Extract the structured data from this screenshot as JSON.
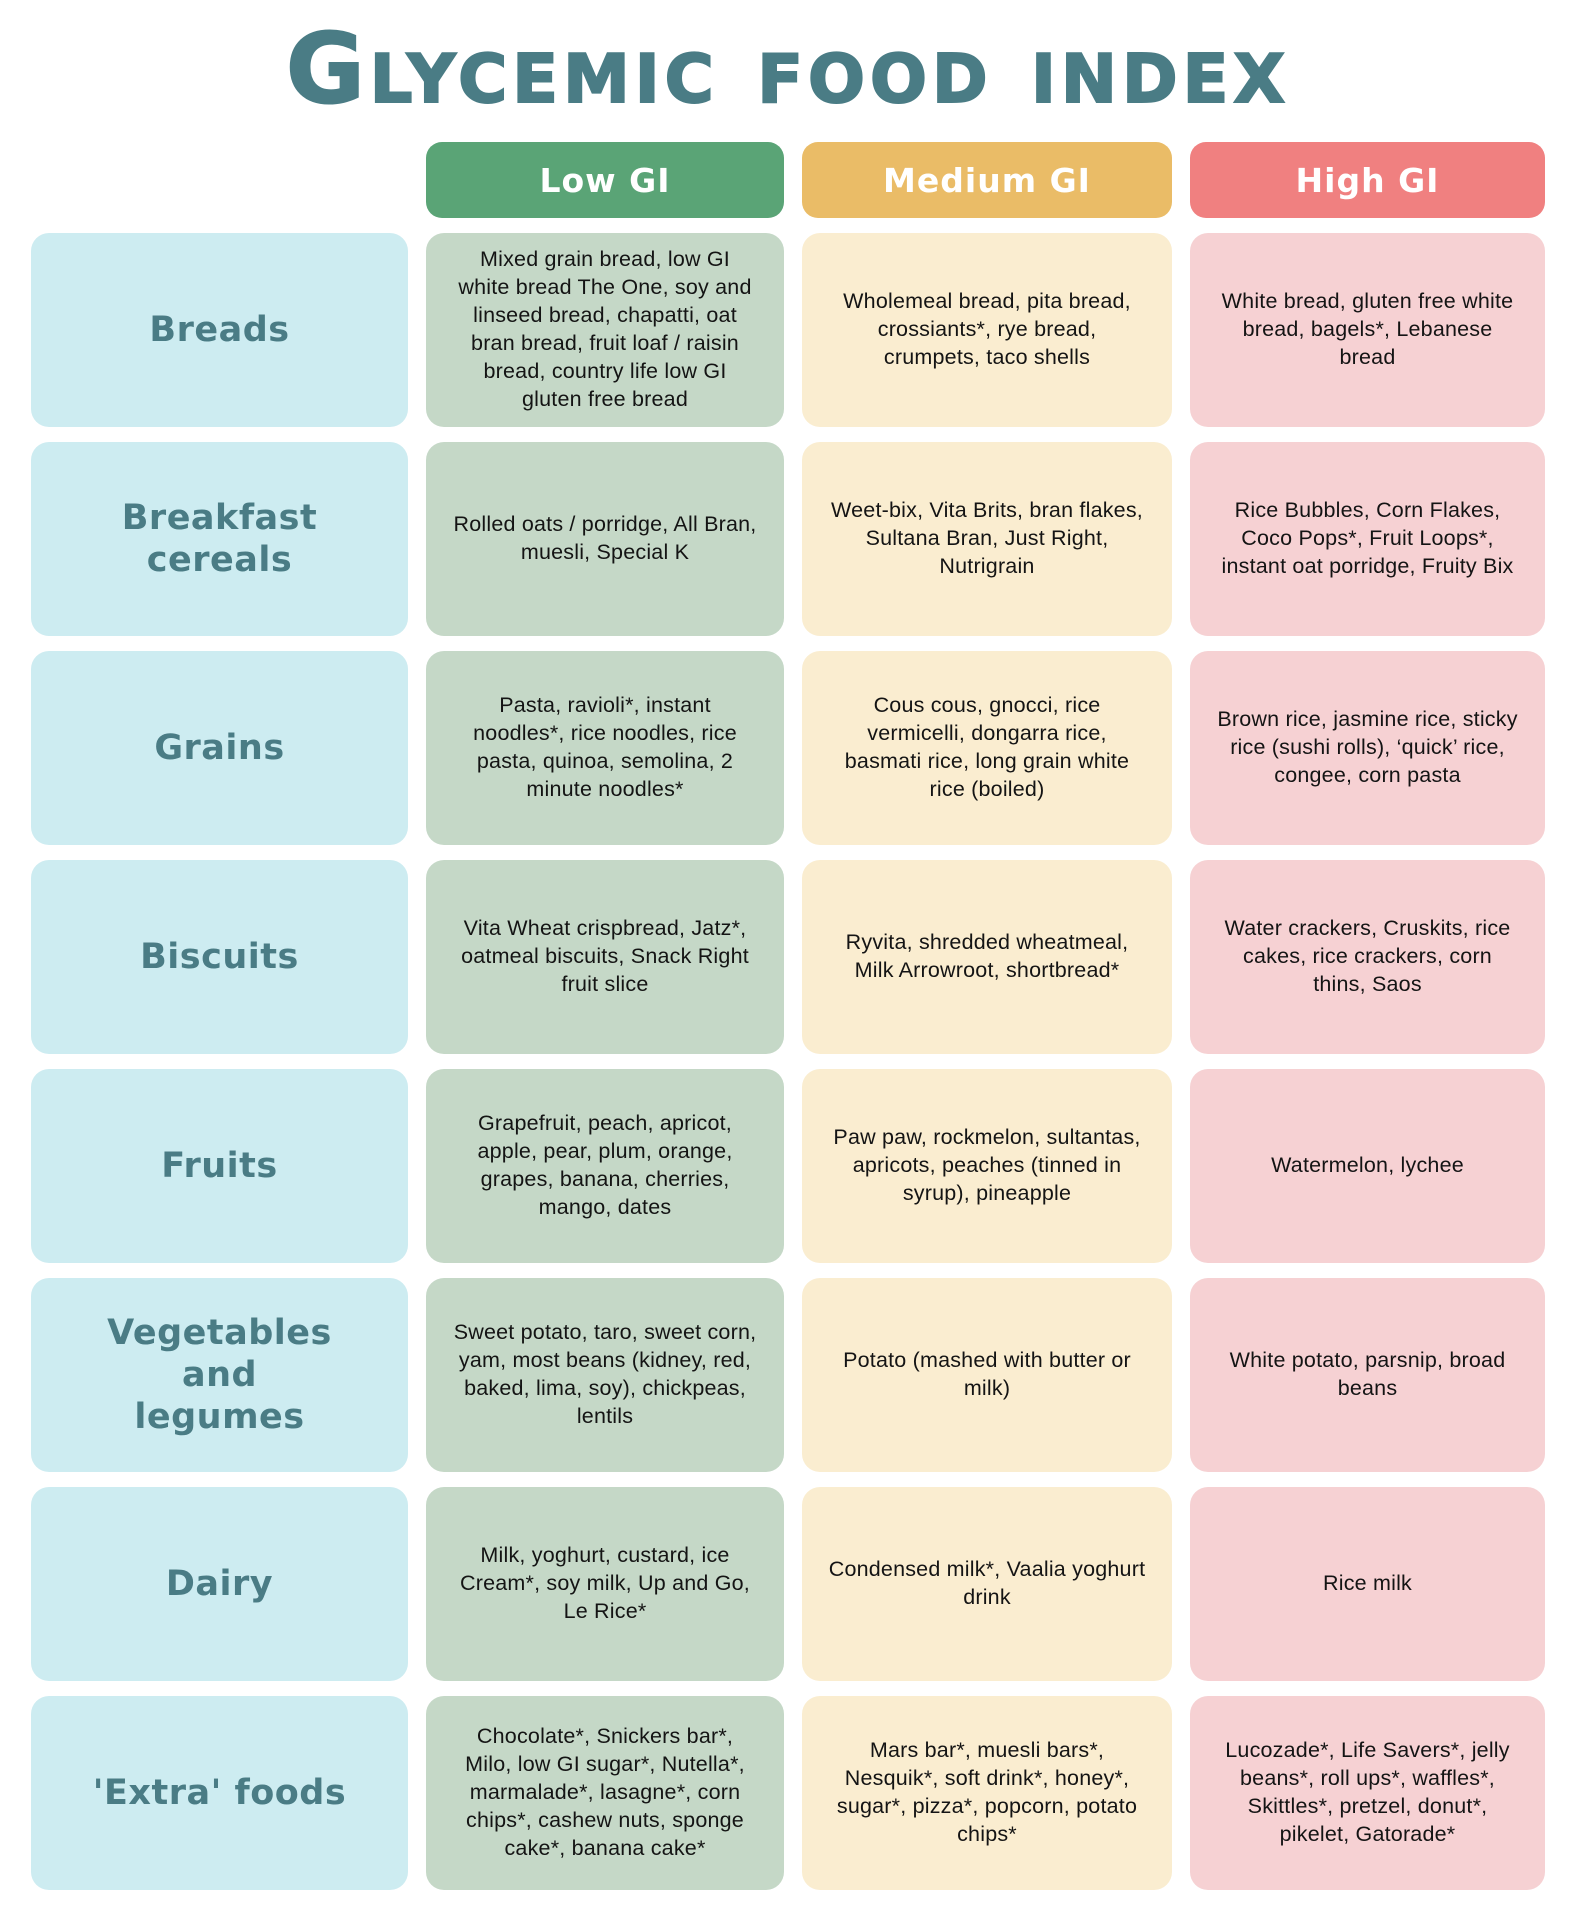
{
  "chart_data": {
    "type": "table",
    "title": "Glycemic Food Index",
    "title_color": "#4a7c85",
    "category_column_color": "#cdecf1",
    "columns": [
      {
        "label": "Low GI",
        "header_color": "#5aa476",
        "cell_color": "#c5d8c7"
      },
      {
        "label": "Medium GI",
        "header_color": "#eabc67",
        "cell_color": "#faedd0"
      },
      {
        "label": "High GI",
        "header_color": "#f08080",
        "cell_color": "#f6d1d3"
      }
    ],
    "rows": [
      {
        "category": "Breads",
        "low": "Mixed grain bread, low GI white bread The One, soy and linseed bread, chapatti, oat bran bread, fruit loaf / raisin bread, country life low GI gluten free bread",
        "medium": "Wholemeal bread, pita bread, crossiants*, rye bread, crumpets, taco shells",
        "high": "White bread, gluten free white bread, bagels*, Lebanese bread"
      },
      {
        "category": "Breakfast\ncereals",
        "low": "Rolled oats / porridge, All Bran, muesli, Special K",
        "medium": "Weet-bix, Vita Brits, bran flakes, Sultana Bran, Just Right, Nutrigrain",
        "high": "Rice Bubbles, Corn Flakes, Coco Pops*, Fruit Loops*, instant oat porridge, Fruity Bix"
      },
      {
        "category": "Grains",
        "low": "Pasta, ravioli*, instant noodles*, rice noodles, rice pasta, quinoa, semolina, 2 minute noodles*",
        "medium": "Cous cous, gnocci, rice vermicelli, dongarra rice, basmati rice, long grain white rice (boiled)",
        "high": "Brown rice, jasmine rice, sticky rice (sushi rolls), ‘quick’ rice, congee, corn pasta"
      },
      {
        "category": "Biscuits",
        "low": "Vita Wheat crispbread, Jatz*, oatmeal biscuits, Snack Right fruit slice",
        "medium": "Ryvita, shredded wheatmeal, Milk Arrowroot, shortbread*",
        "high": "Water crackers, Cruskits, rice cakes, rice crackers, corn thins, Saos"
      },
      {
        "category": "Fruits",
        "low": "Grapefruit, peach, apricot, apple, pear, plum, orange, grapes, banana, cherries, mango, dates",
        "medium": "Paw paw, rockmelon, sultantas, apricots, peaches (tinned in syrup), pineapple",
        "high": "Watermelon, lychee"
      },
      {
        "category": "Vegetables\nand\nlegumes",
        "low": "Sweet potato, taro, sweet corn, yam, most beans (kidney, red, baked, lima, soy), chickpeas, lentils",
        "medium": "Potato (mashed with butter or milk)",
        "high": "White potato, parsnip, broad beans"
      },
      {
        "category": "Dairy",
        "low": "Milk, yoghurt, custard, ice Cream*, soy milk, Up and Go, Le Rice*",
        "medium": "Condensed milk*, Vaalia yoghurt drink",
        "high": "Rice milk"
      },
      {
        "category": "'Extra' foods",
        "low": "Chocolate*, Snickers bar*, Milo, low GI sugar*, Nutella*, marmalade*, lasagne*, corn chips*, cashew nuts, sponge cake*, banana cake*",
        "medium": "Mars bar*, muesli bars*, Nesquik*, soft drink*, honey*, sugar*, pizza*, popcorn, potato chips*",
        "high": "Lucozade*, Life Savers*, jelly beans*, roll ups*, waffles*, Skittles*, pretzel, donut*, pikelet, Gatorade*"
      }
    ]
  }
}
